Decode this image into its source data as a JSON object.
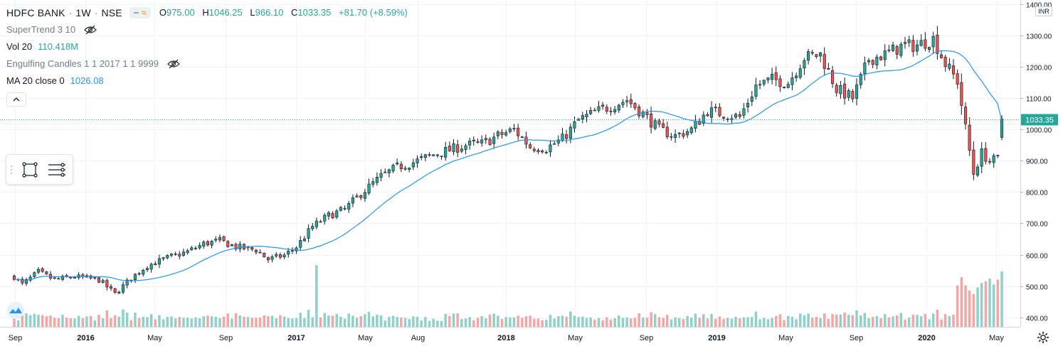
{
  "header": {
    "symbol": "HDFC BANK",
    "interval": "1W",
    "exchange": "NSE",
    "ohlc": {
      "open_label": "O",
      "open": "975.00",
      "high_label": "H",
      "high": "1046.25",
      "low_label": "L",
      "low": "966.10",
      "close_label": "C",
      "close": "1033.35",
      "change": "+81.70 (+8.59%)"
    }
  },
  "indicators": [
    {
      "name": "SuperTrend 3 10",
      "value": "",
      "hidden": true
    },
    {
      "name": "Vol 20",
      "value": "110.418M",
      "value_color": "#26a69a",
      "hidden": false
    },
    {
      "name": "Engulfing Candles 1 1 2017 1 1 9999",
      "value": "",
      "hidden": true
    },
    {
      "name": "MA 20 close 0",
      "value": "1026.08",
      "value_color": "#2196f3",
      "hidden": false
    }
  ],
  "price_axis": {
    "currency": "INR",
    "last_price_label": "1033.35",
    "last_price_color": "#26a69a"
  },
  "icons": {
    "hide": "eye-crossed-icon",
    "collapse": "chevron-up-icon",
    "drag": "grip-icon",
    "rect": "rectangle-tool-icon",
    "lines": "horizontal-lines-icon",
    "settings": "gear-icon",
    "brand": "tradingview-logo-icon"
  },
  "chart_data": {
    "type": "candlestick",
    "title": "HDFC BANK · 1W · NSE",
    "interval": "1W",
    "date_range": [
      "2015-08-31",
      "2020-05-11"
    ],
    "y_axis": {
      "ticks": [
        "1400.00",
        "1300.00",
        "1200.00",
        "1100.00",
        "1000.00",
        "900.00",
        "800.00",
        "700.00",
        "600.00",
        "500.00",
        "400.00"
      ],
      "ylim": [
        390,
        1405
      ]
    },
    "x_axis": {
      "ticks": [
        "Sep",
        "2016",
        "May",
        "Sep",
        "2017",
        "May",
        "Aug",
        "2018",
        "May",
        "Sep",
        "2019",
        "May",
        "Sep",
        "2020",
        "May"
      ]
    },
    "colors": {
      "up": "#26a69a",
      "down": "#ef5350",
      "ma": "#2196f3",
      "vol_up": "#8fd1c9",
      "vol_down": "#f3a6a4",
      "grid": "#f0f3fa"
    },
    "anchors_close": [
      [
        "2015-08-31",
        530
      ],
      [
        "2015-09-14",
        505
      ],
      [
        "2015-10-12",
        545
      ],
      [
        "2015-11-09",
        520
      ],
      [
        "2015-12-14",
        530
      ],
      [
        "2016-01-25",
        520
      ],
      [
        "2016-02-22",
        475
      ],
      [
        "2016-03-21",
        525
      ],
      [
        "2016-04-18",
        565
      ],
      [
        "2016-05-23",
        590
      ],
      [
        "2016-06-27",
        610
      ],
      [
        "2016-07-25",
        635
      ],
      [
        "2016-08-22",
        645
      ],
      [
        "2016-09-19",
        625
      ],
      [
        "2016-10-24",
        615
      ],
      [
        "2016-11-14",
        585
      ],
      [
        "2016-12-12",
        598
      ],
      [
        "2017-01-02",
        625
      ],
      [
        "2017-01-30",
        690
      ],
      [
        "2017-02-27",
        725
      ],
      [
        "2017-03-27",
        745
      ],
      [
        "2017-04-24",
        795
      ],
      [
        "2017-05-29",
        850
      ],
      [
        "2017-06-26",
        880
      ],
      [
        "2017-07-24",
        895
      ],
      [
        "2017-08-28",
        920
      ],
      [
        "2017-09-25",
        935
      ],
      [
        "2017-10-23",
        950
      ],
      [
        "2017-11-20",
        955
      ],
      [
        "2017-12-18",
        980
      ],
      [
        "2018-01-15",
        1000
      ],
      [
        "2018-02-12",
        945
      ],
      [
        "2018-03-12",
        940
      ],
      [
        "2018-04-09",
        970
      ],
      [
        "2018-05-07",
        1030
      ],
      [
        "2018-06-04",
        1055
      ],
      [
        "2018-07-02",
        1075
      ],
      [
        "2018-07-30",
        1095
      ],
      [
        "2018-08-27",
        1050
      ],
      [
        "2018-09-24",
        1000
      ],
      [
        "2018-10-22",
        980
      ],
      [
        "2018-11-19",
        1000
      ],
      [
        "2018-12-17",
        1060
      ],
      [
        "2019-01-14",
        1050
      ],
      [
        "2019-02-11",
        1040
      ],
      [
        "2019-03-11",
        1140
      ],
      [
        "2019-04-08",
        1160
      ],
      [
        "2019-05-06",
        1150
      ],
      [
        "2019-06-03",
        1230
      ],
      [
        "2019-07-01",
        1240
      ],
      [
        "2019-07-29",
        1130
      ],
      [
        "2019-08-26",
        1100
      ],
      [
        "2019-09-23",
        1225
      ],
      [
        "2019-10-21",
        1240
      ],
      [
        "2019-11-18",
        1265
      ],
      [
        "2019-12-16",
        1270
      ],
      [
        "2020-01-13",
        1290
      ],
      [
        "2020-02-03",
        1210
      ],
      [
        "2020-02-24",
        1155
      ],
      [
        "2020-03-09",
        1005
      ],
      [
        "2020-03-23",
        860
      ],
      [
        "2020-04-06",
        925
      ],
      [
        "2020-04-20",
        900
      ],
      [
        "2020-05-04",
        905
      ],
      [
        "2020-05-11",
        1033.35
      ]
    ],
    "volume_spikes": [
      [
        "2017-02-06",
        "up",
        3.1
      ],
      [
        "2020-03-16",
        "down",
        1.82
      ],
      [
        "2020-03-23",
        "up",
        1.65
      ]
    ],
    "last": {
      "open": 975.0,
      "high": 1046.25,
      "low": 966.1,
      "close": 1033.35
    },
    "ma_period": 20,
    "ma_last": 1026.08
  }
}
